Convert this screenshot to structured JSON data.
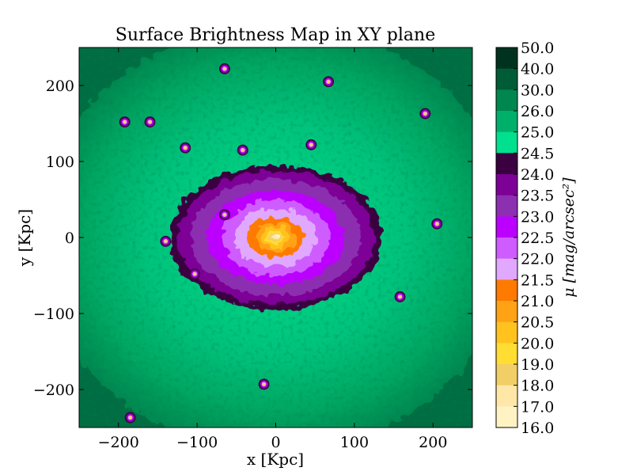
{
  "chart_data": {
    "type": "heatmap",
    "title": "Surface Brightness Map in XY plane",
    "xlabel": "x [Kpc]",
    "ylabel": "y [Kpc]",
    "xlim": [
      -250,
      250
    ],
    "ylim": [
      -250,
      250
    ],
    "x_ticks": [
      -200,
      -100,
      0,
      100,
      200
    ],
    "x_tick_labels": [
      "−200",
      "−100",
      "0",
      "100",
      "200"
    ],
    "y_ticks": [
      200,
      100,
      0,
      -100,
      -200
    ],
    "y_tick_labels": [
      "200",
      "100",
      "0",
      "−100",
      "−200"
    ],
    "grid": false,
    "colorbar": {
      "label": "μ [mag/arcsec²]",
      "levels": [
        {
          "value": 50.0,
          "label": "50.0",
          "color": "#00331f"
        },
        {
          "value": 40.0,
          "label": "40.0",
          "color": "#005c37"
        },
        {
          "value": 30.0,
          "label": "30.0",
          "color": "#00874f"
        },
        {
          "value": 26.0,
          "label": "26.0",
          "color": "#00b06a"
        },
        {
          "value": 25.0,
          "label": "25.0",
          "color": "#00e08e"
        },
        {
          "value": 24.5,
          "label": "24.5",
          "color": "#3a0040"
        },
        {
          "value": 24.0,
          "label": "24.0",
          "color": "#7d0097"
        },
        {
          "value": 23.5,
          "label": "23.5",
          "color": "#8c2fb0"
        },
        {
          "value": 23.0,
          "label": "23.0",
          "color": "#bb00ff"
        },
        {
          "value": 22.5,
          "label": "22.5",
          "color": "#cf5cff"
        },
        {
          "value": 22.0,
          "label": "22.0",
          "color": "#e1a8ff"
        },
        {
          "value": 21.5,
          "label": "21.5",
          "color": "#ff7a00"
        },
        {
          "value": 21.0,
          "label": "21.0",
          "color": "#ffa214"
        },
        {
          "value": 20.5,
          "label": "20.5",
          "color": "#ffc21e"
        },
        {
          "value": 20.0,
          "label": "20.0",
          "color": "#ffdd33"
        },
        {
          "value": 19.0,
          "label": "19.0",
          "color": "#f2cf66"
        },
        {
          "value": 18.0,
          "label": "18.0",
          "color": "#ffe7a8"
        },
        {
          "value": 17.0,
          "label": "17.0",
          "color": "#fff3c4"
        },
        {
          "value": 16.0,
          "label": "16.0",
          "color": "#ffffd6"
        }
      ]
    },
    "features": [
      {
        "kind": "main-galaxy",
        "x": 0,
        "y": 0,
        "peak_mu": 16.0
      },
      {
        "kind": "satellite",
        "x": -65,
        "y": 222
      },
      {
        "kind": "satellite",
        "x": 67,
        "y": 205
      },
      {
        "kind": "satellite",
        "x": 190,
        "y": 163
      },
      {
        "kind": "satellite",
        "x": -192,
        "y": 152
      },
      {
        "kind": "satellite",
        "x": -160,
        "y": 152
      },
      {
        "kind": "satellite",
        "x": -115,
        "y": 118
      },
      {
        "kind": "satellite",
        "x": -42,
        "y": 115
      },
      {
        "kind": "satellite",
        "x": 45,
        "y": 122
      },
      {
        "kind": "satellite",
        "x": -65,
        "y": 30
      },
      {
        "kind": "satellite",
        "x": -140,
        "y": -5
      },
      {
        "kind": "satellite",
        "x": -103,
        "y": -48
      },
      {
        "kind": "satellite",
        "x": 205,
        "y": 18
      },
      {
        "kind": "satellite",
        "x": 158,
        "y": -78
      },
      {
        "kind": "satellite",
        "x": -15,
        "y": -193
      },
      {
        "kind": "satellite",
        "x": -185,
        "y": -237
      }
    ]
  }
}
